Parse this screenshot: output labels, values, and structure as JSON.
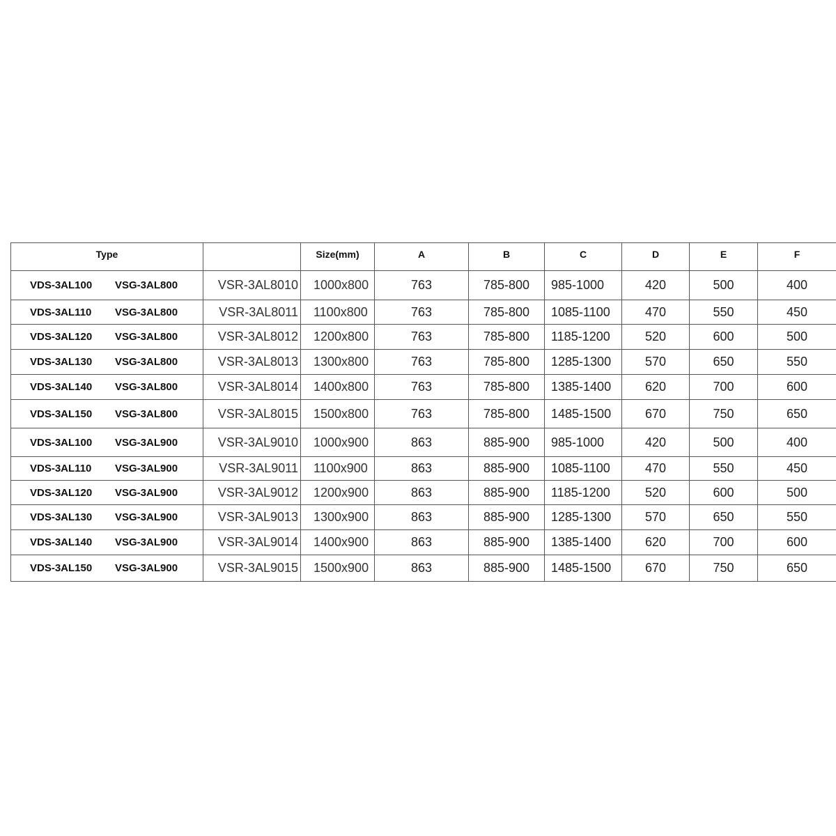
{
  "table": {
    "headers": [
      "Type",
      "",
      "Size(mm)",
      "A",
      "B",
      "C",
      "D",
      "E",
      "F"
    ],
    "rows": [
      {
        "vds": "VDS-3AL100",
        "vsg": "VSG-3AL800",
        "model": "VSR-3AL8010",
        "size": "1000x800",
        "a": "763",
        "b": "785-800",
        "c": "985-1000",
        "d": "420",
        "e": "500",
        "f": "400"
      },
      {
        "vds": "VDS-3AL110",
        "vsg": "VSG-3AL800",
        "model": "VSR-3AL8011",
        "size": "1100x800",
        "a": "763",
        "b": "785-800",
        "c": "1085-1100",
        "d": "470",
        "e": "550",
        "f": "450"
      },
      {
        "vds": "VDS-3AL120",
        "vsg": "VSG-3AL800",
        "model": "VSR-3AL8012",
        "size": "1200x800",
        "a": "763",
        "b": "785-800",
        "c": "1185-1200",
        "d": "520",
        "e": "600",
        "f": "500"
      },
      {
        "vds": "VDS-3AL130",
        "vsg": "VSG-3AL800",
        "model": "VSR-3AL8013",
        "size": "1300x800",
        "a": "763",
        "b": "785-800",
        "c": "1285-1300",
        "d": "570",
        "e": "650",
        "f": "550"
      },
      {
        "vds": "VDS-3AL140",
        "vsg": "VSG-3AL800",
        "model": "VSR-3AL8014",
        "size": "1400x800",
        "a": "763",
        "b": "785-800",
        "c": "1385-1400",
        "d": "620",
        "e": "700",
        "f": "600"
      },
      {
        "vds": "VDS-3AL150",
        "vsg": "VSG-3AL800",
        "model": "VSR-3AL8015",
        "size": "1500x800",
        "a": "763",
        "b": "785-800",
        "c": "1485-1500",
        "d": "670",
        "e": "750",
        "f": "650"
      },
      {
        "vds": "VDS-3AL100",
        "vsg": "VSG-3AL900",
        "model": "VSR-3AL9010",
        "size": "1000x900",
        "a": "863",
        "b": "885-900",
        "c": "985-1000",
        "d": "420",
        "e": "500",
        "f": "400"
      },
      {
        "vds": "VDS-3AL110",
        "vsg": "VSG-3AL900",
        "model": "VSR-3AL9011",
        "size": "1100x900",
        "a": "863",
        "b": "885-900",
        "c": "1085-1100",
        "d": "470",
        "e": "550",
        "f": "450"
      },
      {
        "vds": "VDS-3AL120",
        "vsg": "VSG-3AL900",
        "model": "VSR-3AL9012",
        "size": "1200x900",
        "a": "863",
        "b": "885-900",
        "c": "1185-1200",
        "d": "520",
        "e": "600",
        "f": "500"
      },
      {
        "vds": "VDS-3AL130",
        "vsg": "VSG-3AL900",
        "model": "VSR-3AL9013",
        "size": "1300x900",
        "a": "863",
        "b": "885-900",
        "c": "1285-1300",
        "d": "570",
        "e": "650",
        "f": "550"
      },
      {
        "vds": "VDS-3AL140",
        "vsg": "VSG-3AL900",
        "model": "VSR-3AL9014",
        "size": "1400x900",
        "a": "863",
        "b": "885-900",
        "c": "1385-1400",
        "d": "620",
        "e": "700",
        "f": "600"
      },
      {
        "vds": "VDS-3AL150",
        "vsg": "VSG-3AL900",
        "model": "VSR-3AL9015",
        "size": "1500x900",
        "a": "863",
        "b": "885-900",
        "c": "1485-1500",
        "d": "670",
        "e": "750",
        "f": "650"
      }
    ]
  }
}
